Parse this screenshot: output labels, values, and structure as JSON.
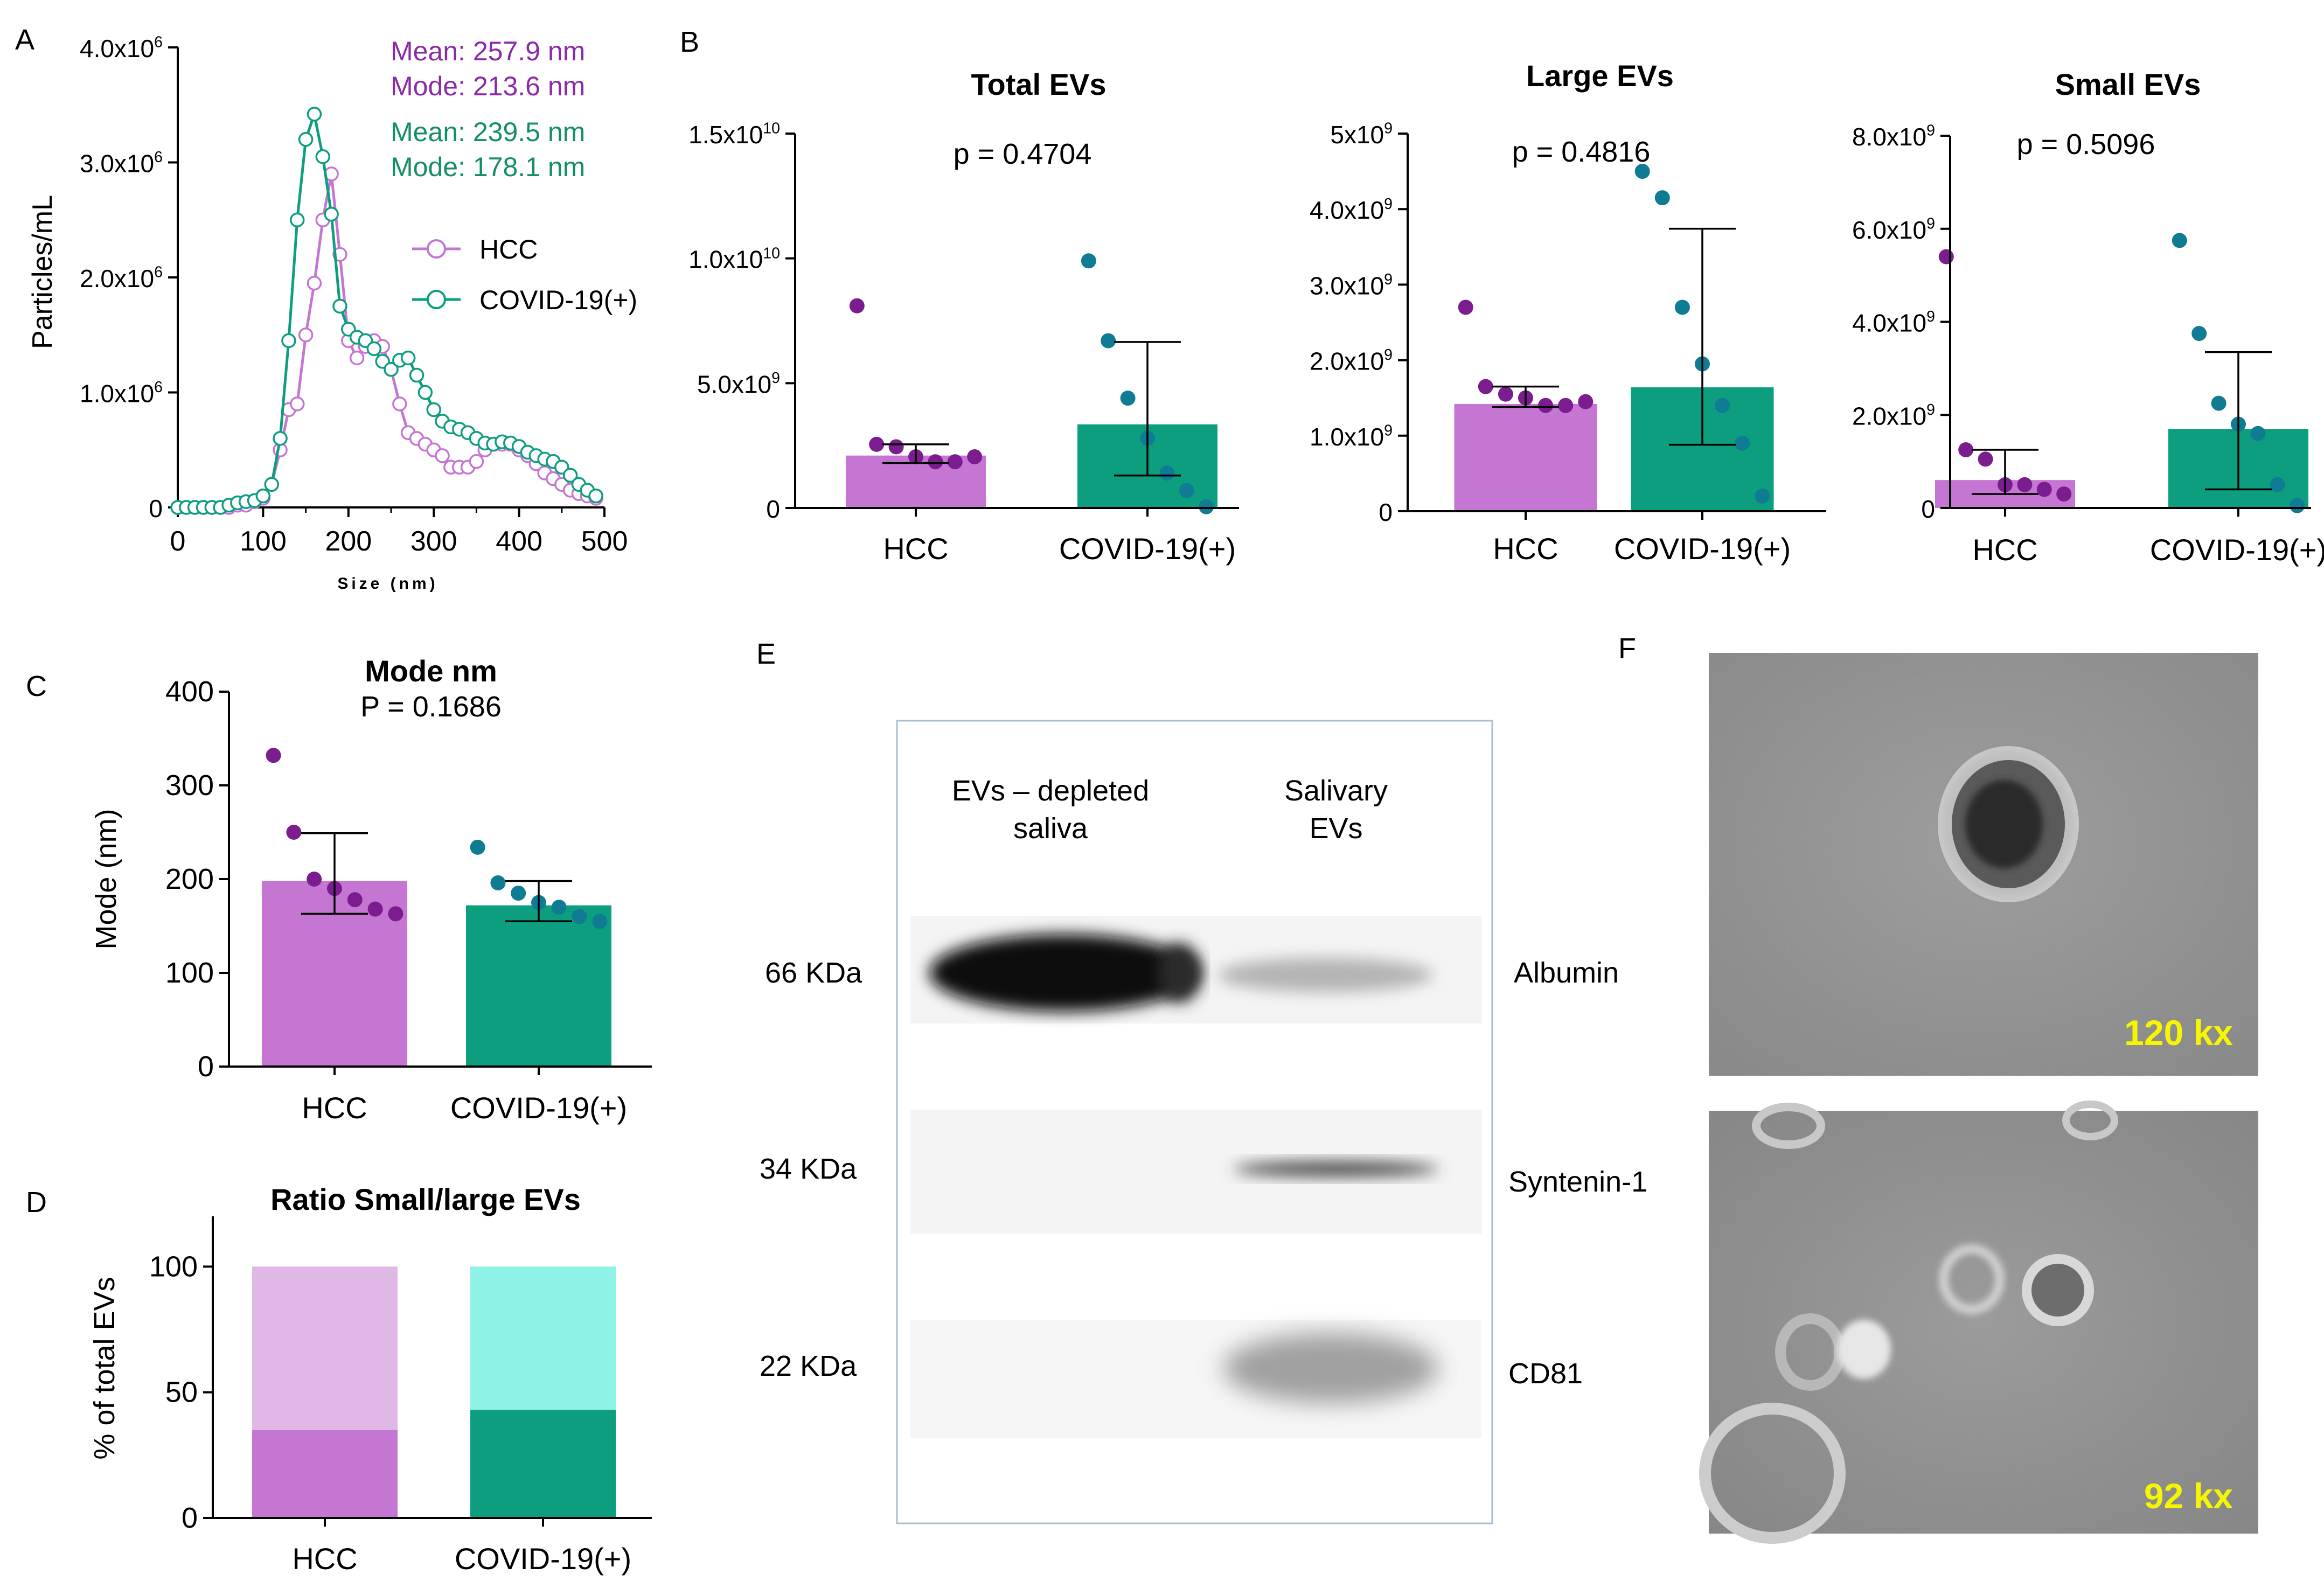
{
  "figure": {
    "panel_labels": [
      "A",
      "B",
      "C",
      "D",
      "E",
      "F"
    ]
  },
  "colors": {
    "hcc": "#c576d3",
    "hcc_dot": "#7b1d8f",
    "covid": "#0d9e80",
    "covid_dot": "#0f7c93",
    "hcc_light": "#e0b8e6",
    "covid_light": "#8ff2e6",
    "stats_hcc": "#8a2aa8",
    "stats_covid": "#148f62",
    "mag_label": "#f6f600"
  },
  "chart_data": [
    {
      "id": "A",
      "type": "line",
      "title": "",
      "xlabel": "Size (nm)",
      "ylabel": "Particles/mL",
      "xlim": [
        0,
        500
      ],
      "ylim": [
        0,
        4000000
      ],
      "x_ticks": [
        "0",
        "100",
        "200",
        "300",
        "400",
        "500"
      ],
      "y_tick_labels": [
        {
          "mantissa": "0",
          "exp": ""
        },
        {
          "mantissa": "1.0x10",
          "exp": "6"
        },
        {
          "mantissa": "2.0x10",
          "exp": "6"
        },
        {
          "mantissa": "3.0x10",
          "exp": "6"
        },
        {
          "mantissa": "4.0x10",
          "exp": "6"
        }
      ],
      "y_tick_values": [
        0,
        1000000,
        2000000,
        3000000,
        4000000
      ],
      "annotations": {
        "hcc_mean": "Mean: 257.9 nm",
        "hcc_mode": "Mode: 213.6 nm",
        "covid_mean": "Mean: 239.5 nm",
        "covid_mode": "Mode: 178.1 nm"
      },
      "legend": {
        "position": "right",
        "entries": [
          "HCC",
          "COVID-19(+)"
        ]
      },
      "x": [
        0,
        10,
        20,
        30,
        40,
        50,
        60,
        70,
        80,
        90,
        100,
        110,
        120,
        130,
        140,
        150,
        160,
        170,
        180,
        190,
        200,
        210,
        220,
        230,
        240,
        250,
        260,
        270,
        280,
        290,
        300,
        310,
        320,
        330,
        340,
        350,
        360,
        370,
        380,
        390,
        400,
        410,
        420,
        430,
        440,
        450,
        460,
        470,
        480,
        490
      ],
      "series": [
        {
          "name": "HCC",
          "values": [
            0,
            0,
            0,
            0,
            0,
            0,
            0,
            20000,
            20000,
            50000,
            80000,
            200000,
            500000,
            850000,
            900000,
            1500000,
            1950000,
            2500000,
            2900000,
            2200000,
            1450000,
            1300000,
            1400000,
            1450000,
            1400000,
            1200000,
            900000,
            650000,
            600000,
            550000,
            500000,
            450000,
            350000,
            350000,
            350000,
            400000,
            500000,
            550000,
            550000,
            550000,
            500000,
            450000,
            380000,
            300000,
            250000,
            200000,
            150000,
            120000,
            100000,
            80000
          ]
        },
        {
          "name": "COVID-19(+)",
          "values": [
            0,
            0,
            0,
            0,
            0,
            0,
            20000,
            40000,
            50000,
            60000,
            100000,
            200000,
            600000,
            1450000,
            2500000,
            3200000,
            3420000,
            3050000,
            2550000,
            1750000,
            1550000,
            1480000,
            1450000,
            1380000,
            1270000,
            1200000,
            1280000,
            1300000,
            1150000,
            1000000,
            850000,
            750000,
            700000,
            680000,
            650000,
            600000,
            560000,
            550000,
            570000,
            560000,
            530000,
            480000,
            450000,
            420000,
            400000,
            350000,
            280000,
            200000,
            150000,
            100000
          ]
        }
      ]
    },
    {
      "id": "B1",
      "type": "bar",
      "title": "Total EVs",
      "pvalue": "p = 0.4704",
      "categories": [
        "HCC",
        "COVID-19(+)"
      ],
      "ylim": [
        0,
        15000000000
      ],
      "y_tick_values": [
        0,
        5000000000,
        10000000000,
        15000000000
      ],
      "y_tick_labels": [
        {
          "mantissa": "0",
          "exp": ""
        },
        {
          "mantissa": "5.0x10",
          "exp": "9"
        },
        {
          "mantissa": "1.0x10",
          "exp": "10"
        },
        {
          "mantissa": "1.5x10",
          "exp": "10"
        }
      ],
      "values": [
        2100000000,
        3350000000
      ],
      "error": [
        [
          1800000000,
          2550000000
        ],
        [
          1300000000,
          6650000000
        ]
      ],
      "points": [
        [
          8100000000,
          2550000000,
          2450000000,
          2050000000,
          1850000000,
          1850000000,
          2050000000
        ],
        [
          9900000000,
          6700000000,
          4400000000,
          2800000000,
          1400000000,
          700000000,
          50000000
        ]
      ]
    },
    {
      "id": "B2",
      "type": "bar",
      "title": "Large EVs",
      "pvalue": "p = 0.4816",
      "categories": [
        "HCC",
        "COVID-19(+)"
      ],
      "ylim": [
        0,
        5000000000
      ],
      "y_tick_values": [
        0,
        1000000000,
        2000000000,
        3000000000,
        4000000000,
        5000000000
      ],
      "y_tick_labels": [
        {
          "mantissa": "0",
          "exp": ""
        },
        {
          "mantissa": "1.0x10",
          "exp": "9"
        },
        {
          "mantissa": "2.0x10",
          "exp": "9"
        },
        {
          "mantissa": "3.0x10",
          "exp": "9"
        },
        {
          "mantissa": "4.0x10",
          "exp": "9"
        },
        {
          "mantissa": "5x10",
          "exp": "9"
        }
      ],
      "values": [
        1420000000,
        1640000000
      ],
      "error": [
        [
          1380000000,
          1650000000
        ],
        [
          880000000,
          3740000000
        ]
      ],
      "points": [
        [
          2700000000,
          1650000000,
          1550000000,
          1500000000,
          1400000000,
          1400000000,
          1450000000
        ],
        [
          4500000000,
          4150000000,
          2700000000,
          1950000000,
          1400000000,
          900000000,
          200000000
        ]
      ]
    },
    {
      "id": "B3",
      "type": "bar",
      "title": "Small EVs",
      "pvalue": "p = 0.5096",
      "categories": [
        "HCC",
        "COVID-19(+)"
      ],
      "ylim": [
        0,
        8000000000
      ],
      "y_tick_values": [
        0,
        2000000000,
        4000000000,
        6000000000,
        8000000000
      ],
      "y_tick_labels": [
        {
          "mantissa": "0",
          "exp": ""
        },
        {
          "mantissa": "2.0x10",
          "exp": "9"
        },
        {
          "mantissa": "4.0x10",
          "exp": "9"
        },
        {
          "mantissa": "6.0x10",
          "exp": "9"
        },
        {
          "mantissa": "8.0x10",
          "exp": "9"
        }
      ],
      "values": [
        600000000,
        1700000000
      ],
      "error": [
        [
          300000000,
          1250000000
        ],
        [
          400000000,
          3350000000
        ]
      ],
      "points": [
        [
          5400000000,
          1250000000,
          1050000000,
          500000000,
          500000000,
          400000000,
          300000000
        ],
        [
          5750000000,
          3750000000,
          2250000000,
          1800000000,
          1600000000,
          500000000,
          50000000
        ]
      ]
    },
    {
      "id": "C",
      "type": "bar",
      "title": "Mode nm",
      "pvalue": "P = 0.1686",
      "categories": [
        "HCC",
        "COVID-19(+)"
      ],
      "ylabel": "Mode (nm)",
      "ylim": [
        0,
        400
      ],
      "y_tick_values": [
        0,
        100,
        200,
        300,
        400
      ],
      "y_tick_labels": [
        {
          "mantissa": "0",
          "exp": ""
        },
        {
          "mantissa": "100",
          "exp": ""
        },
        {
          "mantissa": "200",
          "exp": ""
        },
        {
          "mantissa": "300",
          "exp": ""
        },
        {
          "mantissa": "400",
          "exp": ""
        }
      ],
      "values": [
        198,
        172
      ],
      "error": [
        [
          163,
          249
        ],
        [
          155,
          198
        ]
      ],
      "points": [
        [
          332,
          250,
          200,
          190,
          178,
          168,
          163
        ],
        [
          234,
          196,
          185,
          175,
          170,
          160,
          155
        ]
      ]
    },
    {
      "id": "D",
      "type": "bar",
      "stacked": true,
      "title": "Ratio Small/large EVs",
      "categories": [
        "HCC",
        "COVID-19(+)"
      ],
      "ylabel": "% of total EVs",
      "ylim": [
        0,
        120
      ],
      "y_tick_values": [
        0,
        50,
        100
      ],
      "y_tick_labels": [
        {
          "mantissa": "0",
          "exp": ""
        },
        {
          "mantissa": "50",
          "exp": ""
        },
        {
          "mantissa": "100",
          "exp": ""
        }
      ],
      "series": [
        {
          "values": [
            35,
            43
          ]
        },
        {
          "values": [
            65,
            57
          ]
        }
      ]
    }
  ],
  "western_blot": {
    "lanes": [
      "EVs – depleted saliva",
      "Salivary EVs"
    ],
    "lane_lines": [
      [
        "EVs – depleted",
        "saliva"
      ],
      [
        "Salivary",
        "EVs"
      ]
    ],
    "rows": [
      {
        "kda": "66 KDa",
        "protein": "Albumin"
      },
      {
        "kda": "34 KDa",
        "protein": "Syntenin-1"
      },
      {
        "kda": "22 KDa",
        "protein": "CD81"
      }
    ]
  },
  "tem": [
    {
      "magnification": "120 kx"
    },
    {
      "magnification": "92 kx"
    }
  ]
}
